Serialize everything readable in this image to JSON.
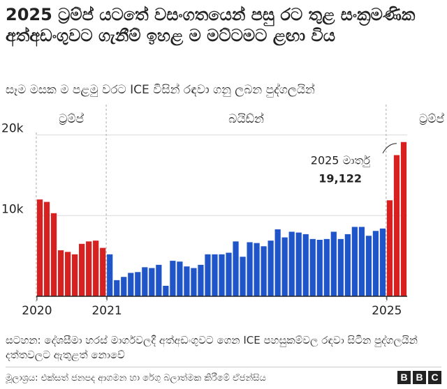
{
  "title": "2025 ට්‍රම්ප් යටතේ වසංගතයෙන් පසු රට තුළ සංක්‍රමණික අත්අඩංගුවට ගැනීම් ඉහළ ම මට්ටමට ළඟා විය",
  "subtitle": "සෑම මසක ම පළමු වරට ICE විසින් රඳවා ගනු ලබන පුද්ගලයින්",
  "note": "සටහන: දේශසීමා හරස් මාර්ගවලදී අත්අඩංගුවට ගෙන ICE පහසුකම්වල රඳවා සිටින පුද්ගලයින් දත්තවලට ඇතුළත් නොවේ",
  "source": "මූලාශ්‍රය: එක්සත් ජනපද ආගමන හා රේගු බලාත්මක කිරීමේ ඒජන්සිය",
  "logo": [
    "B",
    "B",
    "C"
  ],
  "colors": {
    "trump": "#d7201f",
    "biden": "#1f55c9",
    "grid": "#d9d9d9",
    "axis": "#222222",
    "divider": "#aaaaaa"
  },
  "chart_data": {
    "type": "bar",
    "title": "සෑම මසක ම පළමු වරට ICE විසින් රඳවා ගනු ලබන පුද්ගලයින්",
    "xlabel": "",
    "ylabel": "",
    "ylim": [
      0,
      21000
    ],
    "yticks": [
      {
        "value": 10000,
        "label": "10k"
      },
      {
        "value": 20000,
        "label": "20k"
      }
    ],
    "xticks": [
      {
        "index": 0,
        "label": "2020"
      },
      {
        "index": 10,
        "label": "2021"
      },
      {
        "index": 50,
        "label": "2025"
      }
    ],
    "eras": [
      {
        "label": "ට්‍රම්ප්",
        "start": 0,
        "end": 9
      },
      {
        "label": "බයිඩ්න්",
        "start": 10,
        "end": 49
      },
      {
        "label": "ට්‍රම්ප්",
        "start": 50,
        "end": 52
      }
    ],
    "series": [
      {
        "name": "ට්‍රම්ප්",
        "color": "#d7201f",
        "indices": [
          0,
          1,
          2,
          3,
          4,
          5,
          6,
          7,
          8,
          9,
          50,
          51,
          52
        ],
        "values": [
          12000,
          11700,
          10300,
          5700,
          5500,
          5200,
          6500,
          6800,
          6900,
          6000,
          11900,
          17500,
          19122
        ]
      },
      {
        "name": "බයිඩ්න්",
        "color": "#1f55c9",
        "indices": [
          10,
          11,
          12,
          13,
          14,
          15,
          16,
          17,
          18,
          19,
          20,
          21,
          22,
          23,
          24,
          25,
          26,
          27,
          28,
          29,
          30,
          31,
          32,
          33,
          34,
          35,
          36,
          37,
          38,
          39,
          40,
          41,
          42,
          43,
          44,
          45,
          46,
          47,
          48,
          49
        ],
        "values": [
          5200,
          2000,
          2400,
          2900,
          3000,
          3600,
          3500,
          3900,
          1300,
          4400,
          4300,
          3700,
          3500,
          3900,
          5200,
          5200,
          5200,
          5400,
          6800,
          4900,
          6700,
          6600,
          6200,
          6900,
          8300,
          7300,
          8000,
          7900,
          7700,
          7100,
          7000,
          7100,
          8000,
          7100,
          7700,
          8600,
          8600,
          7500,
          8100,
          8400
        ]
      }
    ],
    "annotation": {
      "label": "2025 මාර්තු",
      "value_label": "19,122",
      "index": 52
    }
  }
}
